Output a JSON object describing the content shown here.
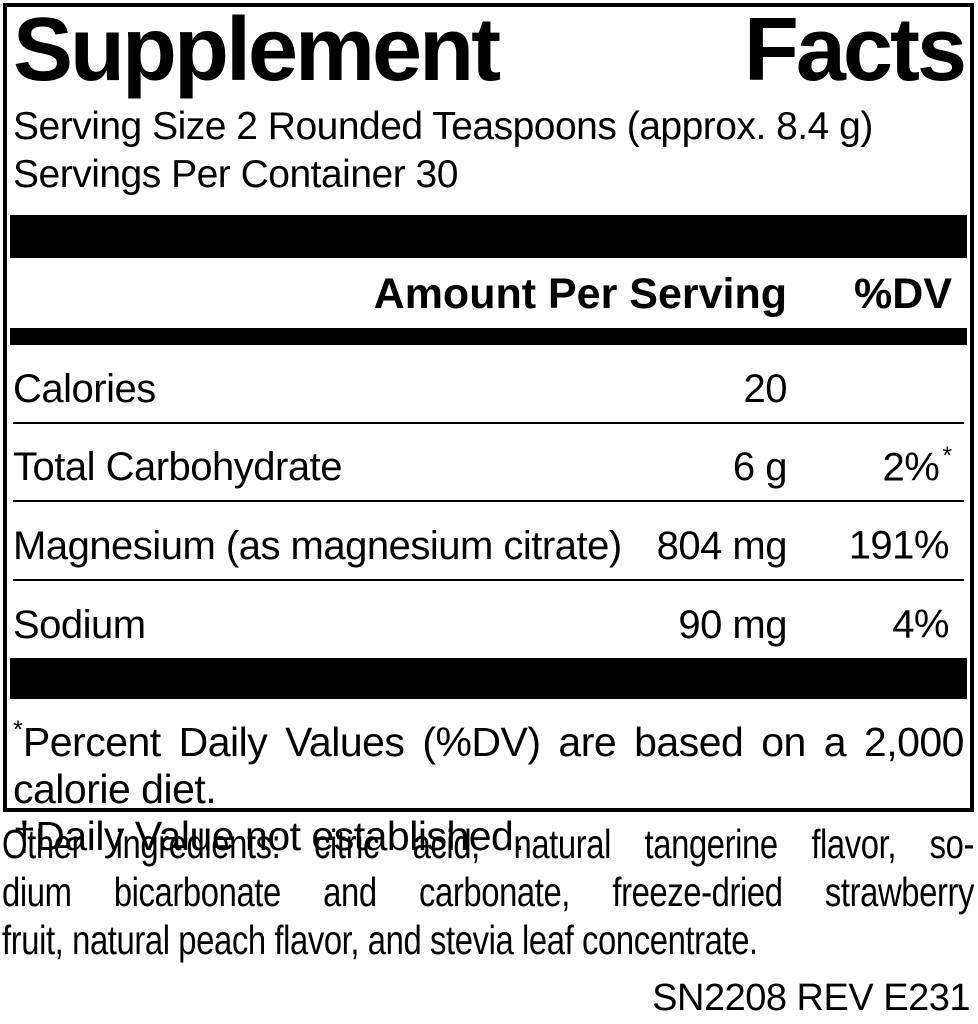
{
  "title": {
    "word1": "Supplement",
    "word2": "Facts"
  },
  "serving": {
    "size_line": "Serving Size 2 Rounded Teaspoons (approx. 8.4 g)",
    "per_container_line": "Servings Per Container 30"
  },
  "table": {
    "header": {
      "amount_label": "Amount Per Serving",
      "dv_label": "%DV"
    },
    "rows": [
      {
        "name": "Calories",
        "amount": "20",
        "dv": "",
        "dv_mark": ""
      },
      {
        "name": "Total Carbohydrate",
        "amount": "6 g",
        "dv": "2%",
        "dv_mark": "*"
      },
      {
        "name": "Magnesium (as magnesium citrate)",
        "amount": "804 mg",
        "dv": "191%",
        "dv_mark": ""
      },
      {
        "name": "Sodium",
        "amount": "90 mg",
        "dv": "4%",
        "dv_mark": ""
      }
    ]
  },
  "footnotes": {
    "line1_mark": "*",
    "line1_text": "Percent Daily Values (%DV) are based on a 2,000",
    "line2": "calorie diet.",
    "line3": "†Daily Value not established."
  },
  "other_ingredients": {
    "line1": "Other ingredients: citric acid, natural tangerine flavor, so-",
    "line2": "dium bicarbonate and carbonate, freeze-dried strawberry",
    "line3": "fruit, natural peach flavor, and stevia leaf concentrate."
  },
  "footer_code": "SN2208 REV E231",
  "colors": {
    "ink": "#000000",
    "background": "#ffffff"
  }
}
